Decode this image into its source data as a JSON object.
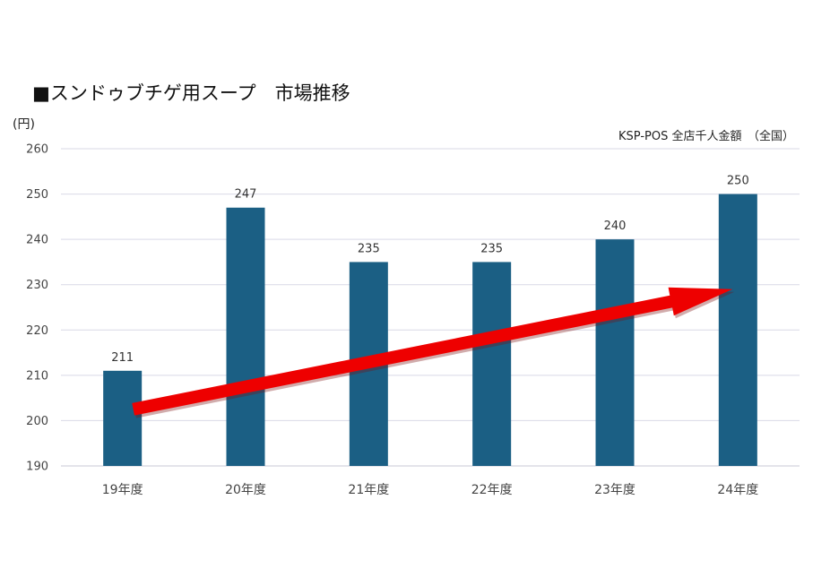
{
  "chart_data": {
    "type": "bar",
    "title": "■スンドゥブチゲ用スープ　市場推移",
    "source_note": "KSP-POS 全店千人金額　（全国）",
    "y_unit": "(円)",
    "xlabel": "",
    "ylabel": "",
    "categories": [
      "19年度",
      "20年度",
      "21年度",
      "22年度",
      "23年度",
      "24年度"
    ],
    "values": [
      211,
      247,
      235,
      235,
      240,
      250
    ],
    "ylim": [
      190,
      260
    ],
    "yticks": [
      190,
      200,
      210,
      220,
      230,
      240,
      250,
      260
    ],
    "grid": true,
    "legend": "none",
    "trend_arrow": {
      "from": [
        0,
        202.5
      ],
      "to": [
        5,
        229
      ]
    },
    "colors": {
      "bar": "#1b5f84",
      "arrow": "#ee0000",
      "grid": "#d9d9e6"
    }
  }
}
